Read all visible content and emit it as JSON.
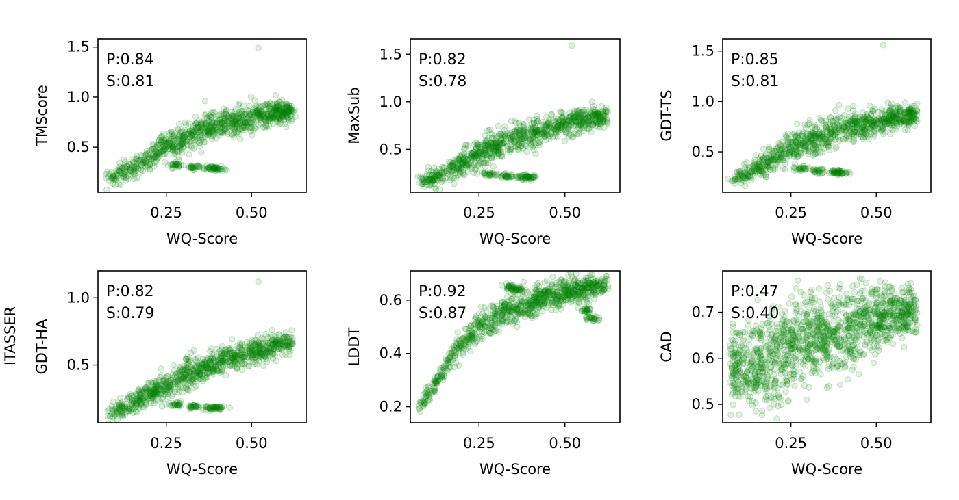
{
  "figure_label": "ITASSER",
  "chart_data": [
    {
      "type": "scatter",
      "xlabel": "WQ-Score",
      "ylabel": "TMScore",
      "xlim": [
        0.05,
        0.66
      ],
      "ylim": [
        0.05,
        1.58
      ],
      "xticks": [
        0.25,
        0.5
      ],
      "xtick_labels": [
        "0.25",
        "0.50"
      ],
      "yticks": [
        0.5,
        1.0,
        1.5
      ],
      "ytick_labels": [
        "0.5",
        "1.0",
        "1.5"
      ],
      "annotation": {
        "pearson": "P:0.84",
        "spearman": "S:0.81"
      },
      "grid": false,
      "color": "#008000",
      "data": {
        "main_band": [
          [
            0.08,
            0.18
          ],
          [
            0.12,
            0.24
          ],
          [
            0.18,
            0.36
          ],
          [
            0.25,
            0.5
          ],
          [
            0.32,
            0.62
          ],
          [
            0.4,
            0.72
          ],
          [
            0.5,
            0.8
          ],
          [
            0.58,
            0.85
          ],
          [
            0.62,
            0.86
          ]
        ],
        "low_cluster": [
          [
            0.28,
            0.32
          ],
          [
            0.33,
            0.3
          ],
          [
            0.38,
            0.29
          ],
          [
            0.4,
            0.28
          ]
        ],
        "outliers": [
          [
            0.52,
            1.49
          ]
        ]
      }
    },
    {
      "type": "scatter",
      "xlabel": "WQ-Score",
      "ylabel": "MaxSub",
      "xlim": [
        0.05,
        0.66
      ],
      "ylim": [
        0.05,
        1.66
      ],
      "xticks": [
        0.25,
        0.5
      ],
      "xtick_labels": [
        "0.25",
        "0.50"
      ],
      "yticks": [
        0.5,
        1.0,
        1.5
      ],
      "ytick_labels": [
        "0.5",
        "1.0",
        "1.5"
      ],
      "annotation": {
        "pearson": "P:0.82",
        "spearman": "S:0.78"
      },
      "grid": false,
      "color": "#008000",
      "data": {
        "main_band": [
          [
            0.08,
            0.14
          ],
          [
            0.12,
            0.2
          ],
          [
            0.18,
            0.31
          ],
          [
            0.25,
            0.45
          ],
          [
            0.32,
            0.57
          ],
          [
            0.4,
            0.67
          ],
          [
            0.5,
            0.76
          ],
          [
            0.58,
            0.83
          ],
          [
            0.62,
            0.86
          ]
        ],
        "low_cluster": [
          [
            0.28,
            0.24
          ],
          [
            0.33,
            0.22
          ],
          [
            0.38,
            0.21
          ],
          [
            0.4,
            0.21
          ]
        ],
        "outliers": [
          [
            0.52,
            1.59
          ]
        ]
      }
    },
    {
      "type": "scatter",
      "xlabel": "WQ-Score",
      "ylabel": "GDT-TS",
      "xlim": [
        0.05,
        0.66
      ],
      "ylim": [
        0.1,
        1.62
      ],
      "xticks": [
        0.25,
        0.5
      ],
      "xtick_labels": [
        "0.25",
        "0.50"
      ],
      "yticks": [
        0.5,
        1.0,
        1.5
      ],
      "ytick_labels": [
        "0.5",
        "1.0",
        "1.5"
      ],
      "annotation": {
        "pearson": "P:0.85",
        "spearman": "S:0.81"
      },
      "grid": false,
      "color": "#008000",
      "data": {
        "main_band": [
          [
            0.08,
            0.22
          ],
          [
            0.12,
            0.28
          ],
          [
            0.18,
            0.4
          ],
          [
            0.25,
            0.54
          ],
          [
            0.32,
            0.64
          ],
          [
            0.4,
            0.73
          ],
          [
            0.5,
            0.8
          ],
          [
            0.58,
            0.85
          ],
          [
            0.62,
            0.87
          ]
        ],
        "low_cluster": [
          [
            0.28,
            0.33
          ],
          [
            0.33,
            0.31
          ],
          [
            0.38,
            0.3
          ],
          [
            0.4,
            0.3
          ]
        ],
        "outliers": [
          [
            0.52,
            1.56
          ]
        ]
      }
    },
    {
      "type": "scatter",
      "xlabel": "WQ-Score",
      "ylabel": "GDT-HA",
      "xlim": [
        0.05,
        0.66
      ],
      "ylim": [
        0.07,
        1.2
      ],
      "xticks": [
        0.25,
        0.5
      ],
      "xtick_labels": [
        "0.25",
        "0.50"
      ],
      "yticks": [
        0.5,
        1.0
      ],
      "ytick_labels": [
        "0.5",
        "1.0"
      ],
      "annotation": {
        "pearson": "P:0.82",
        "spearman": "S:0.79"
      },
      "grid": false,
      "color": "#008000",
      "data": {
        "main_band": [
          [
            0.08,
            0.13
          ],
          [
            0.12,
            0.17
          ],
          [
            0.18,
            0.25
          ],
          [
            0.25,
            0.35
          ],
          [
            0.32,
            0.44
          ],
          [
            0.4,
            0.52
          ],
          [
            0.5,
            0.59
          ],
          [
            0.58,
            0.65
          ],
          [
            0.62,
            0.68
          ]
        ],
        "low_cluster": [
          [
            0.28,
            0.2
          ],
          [
            0.33,
            0.19
          ],
          [
            0.38,
            0.18
          ],
          [
            0.4,
            0.18
          ]
        ],
        "outliers": [
          [
            0.52,
            1.12
          ]
        ]
      }
    },
    {
      "type": "scatter",
      "xlabel": "WQ-Score",
      "ylabel": "LDDT",
      "xlim": [
        0.05,
        0.66
      ],
      "ylim": [
        0.14,
        0.71
      ],
      "xticks": [
        0.25,
        0.5
      ],
      "xtick_labels": [
        "0.25",
        "0.50"
      ],
      "yticks": [
        0.2,
        0.4,
        0.6
      ],
      "ytick_labels": [
        "0.2",
        "0.4",
        "0.6"
      ],
      "annotation": {
        "pearson": "P:0.92",
        "spearman": "S:0.87"
      },
      "grid": false,
      "color": "#008000",
      "data": {
        "main_band": [
          [
            0.08,
            0.2
          ],
          [
            0.12,
            0.28
          ],
          [
            0.16,
            0.37
          ],
          [
            0.2,
            0.44
          ],
          [
            0.25,
            0.5
          ],
          [
            0.32,
            0.55
          ],
          [
            0.4,
            0.59
          ],
          [
            0.5,
            0.63
          ],
          [
            0.58,
            0.65
          ],
          [
            0.62,
            0.66
          ]
        ],
        "low_cluster": [
          [
            0.34,
            0.65
          ],
          [
            0.36,
            0.64
          ],
          [
            0.56,
            0.56
          ],
          [
            0.58,
            0.53
          ]
        ],
        "outliers": []
      }
    },
    {
      "type": "scatter",
      "xlabel": "WQ-Score",
      "ylabel": "CAD",
      "xlim": [
        0.05,
        0.66
      ],
      "ylim": [
        0.46,
        0.79
      ],
      "xticks": [
        0.25,
        0.5
      ],
      "xtick_labels": [
        "0.25",
        "0.50"
      ],
      "yticks": [
        0.5,
        0.6,
        0.7
      ],
      "ytick_labels": [
        "0.5",
        "0.6",
        "0.7"
      ],
      "annotation": {
        "pearson": "P:0.47",
        "spearman": "S:0.40"
      },
      "grid": false,
      "color": "#008000",
      "data": {
        "cloud_center_x": [
          0.1,
          0.2,
          0.3,
          0.4,
          0.5,
          0.6
        ],
        "cloud_center_y": [
          0.58,
          0.6,
          0.64,
          0.66,
          0.69,
          0.7
        ],
        "cloud_spread_y": [
          0.05,
          0.07,
          0.06,
          0.06,
          0.04,
          0.03
        ]
      }
    }
  ]
}
